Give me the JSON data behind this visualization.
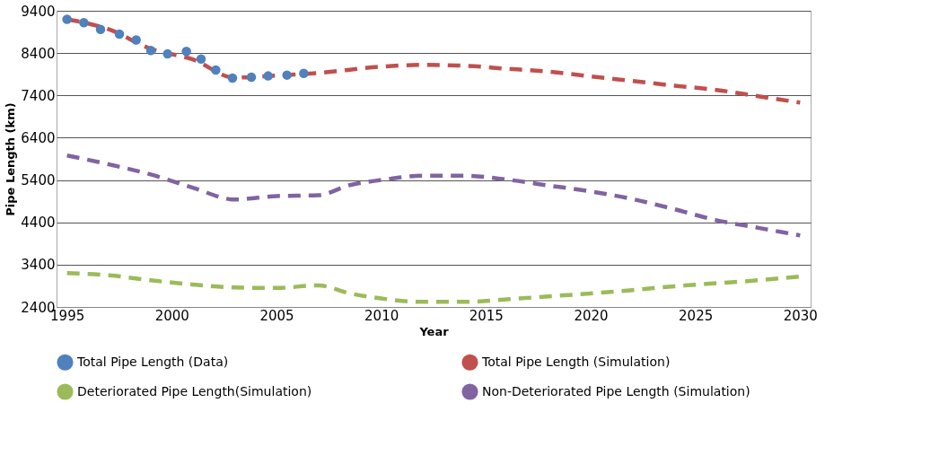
{
  "chart_data": {
    "type": "line",
    "xlabel": "Year",
    "ylabel": "Pipe Length (km)",
    "xlim": [
      1994.5,
      2030.5
    ],
    "xticks": [
      1995,
      2000,
      2005,
      2010,
      2015,
      2020,
      2025,
      2030
    ],
    "ylim": [
      2400,
      9400
    ],
    "yticks": [
      2400,
      3400,
      4400,
      5400,
      6400,
      7400,
      8400,
      9400
    ],
    "grid": "y",
    "legend": "bottom",
    "series": [
      {
        "name": "Total Pipe Length (Data)",
        "type": "scatter",
        "marker": "circle",
        "color": "#4f81bd",
        "x": [
          1995,
          1995.8,
          1996.6,
          1997.5,
          1998.3,
          1999.0,
          1999.8,
          2000.7,
          2001.4,
          2002.1,
          2002.9,
          2003.8,
          2004.6,
          2005.5,
          2006.3
        ],
        "values": [
          9200,
          9120,
          8960,
          8850,
          8710,
          8460,
          8380,
          8440,
          8260,
          8000,
          7810,
          7830,
          7860,
          7880,
          7920
        ]
      },
      {
        "name": "Total Pipe Length (Simulation)",
        "line_style": "dashed",
        "color": "#c0504d",
        "x": [
          1995,
          1997,
          1999,
          2001,
          2003,
          2005,
          2007,
          2010,
          2012,
          2014,
          2016,
          2018,
          2020,
          2022,
          2024,
          2026,
          2028,
          2030
        ],
        "values": [
          9200,
          8960,
          8500,
          8250,
          7820,
          7870,
          7930,
          8080,
          8120,
          8100,
          8030,
          7960,
          7850,
          7740,
          7630,
          7530,
          7380,
          7230
        ]
      },
      {
        "name": "Deteriorated Pipe Length(Simulation)",
        "line_style": "dashed",
        "color": "#9bbb59",
        "x": [
          1995,
          1997,
          1999,
          2001,
          2003,
          2005,
          2007,
          2008.5,
          2010,
          2012,
          2014,
          2016,
          2018,
          2020,
          2022,
          2024,
          2026,
          2028,
          2030
        ],
        "values": [
          3200,
          3150,
          3030,
          2930,
          2860,
          2850,
          2910,
          2720,
          2600,
          2520,
          2520,
          2580,
          2650,
          2720,
          2800,
          2890,
          2960,
          3030,
          3120
        ]
      },
      {
        "name": "Non-Deteriorated Pipe Length (Simulation)",
        "line_style": "dashed",
        "color": "#8064a2",
        "x": [
          1995,
          1997,
          1999,
          2001,
          2003,
          2005,
          2007,
          2008.5,
          2010,
          2012,
          2014,
          2016,
          2018,
          2020,
          2022,
          2024,
          2026,
          2028,
          2030
        ],
        "values": [
          5980,
          5770,
          5530,
          5220,
          4940,
          5020,
          5040,
          5280,
          5400,
          5500,
          5500,
          5410,
          5270,
          5130,
          4950,
          4710,
          4450,
          4270,
          4090
        ]
      }
    ]
  }
}
